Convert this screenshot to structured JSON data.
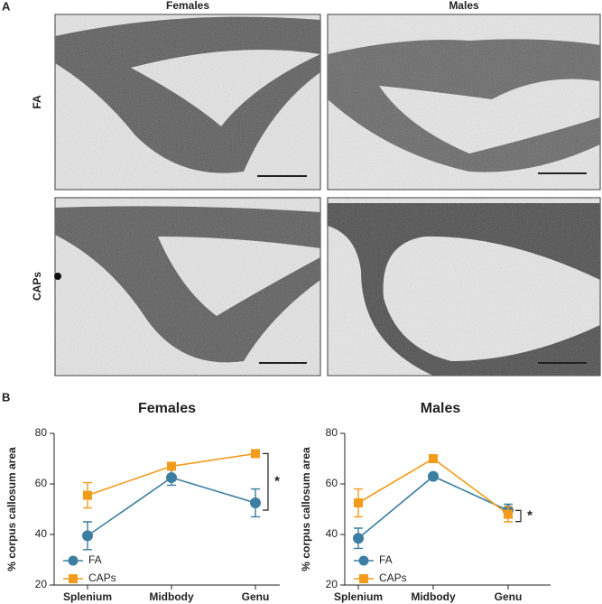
{
  "figure": {
    "panel_labels": [
      "A",
      "B"
    ],
    "column_labels": [
      "Females",
      "Males"
    ],
    "row_labels": [
      "FA",
      "CAPs"
    ]
  },
  "chart_data": [
    {
      "type": "line",
      "title": "Females",
      "y_label": "% corpus callosum area",
      "categories": [
        "Splenium",
        "Midbody",
        "Genu"
      ],
      "series": [
        {
          "name": "FA",
          "color": "#3b7ea1",
          "marker": "circle",
          "values": [
            39.5,
            62.5,
            52.5
          ],
          "errors": [
            5.5,
            3,
            5.5
          ]
        },
        {
          "name": "CAPs",
          "color": "#f39c1c",
          "marker": "square",
          "values": [
            55.5,
            67,
            72
          ],
          "errors": [
            5,
            1,
            1.5
          ]
        }
      ],
      "ylim": [
        20,
        80
      ],
      "yticks": [
        20,
        40,
        60,
        80
      ],
      "legend": "lower left",
      "annotation": "*"
    },
    {
      "type": "line",
      "title": "Males",
      "y_label": "% corpus callosum area",
      "categories": [
        "Splenium",
        "Midbody",
        "Genu"
      ],
      "series": [
        {
          "name": "FA",
          "color": "#3b7ea1",
          "marker": "circle",
          "values": [
            38.5,
            63,
            49.5
          ],
          "errors": [
            4,
            1,
            2.5
          ]
        },
        {
          "name": "CAPs",
          "color": "#f39c1c",
          "marker": "square",
          "values": [
            52.5,
            70,
            48
          ],
          "errors": [
            5.5,
            1.5,
            3
          ]
        }
      ],
      "ylim": [
        20,
        80
      ],
      "yticks": [
        20,
        40,
        60,
        80
      ],
      "legend": "lower left",
      "annotation": "*"
    }
  ]
}
